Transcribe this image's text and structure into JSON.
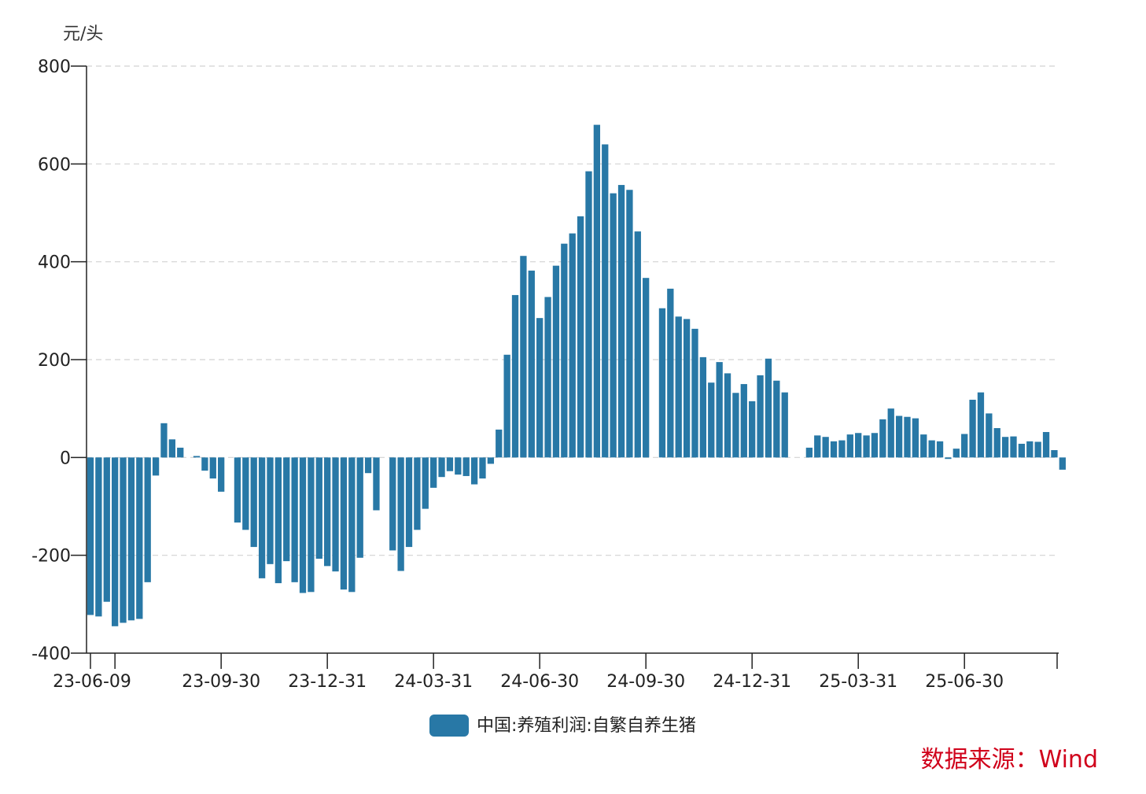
{
  "chart_data": {
    "type": "bar",
    "ylabel": "元/头",
    "ylim": [
      -400,
      800
    ],
    "yticks": [
      800,
      600,
      400,
      200,
      0,
      -200,
      -400
    ],
    "grid": true,
    "color": "#2878a6",
    "xtick_labels": [
      "23-06-09",
      "23-09-30",
      "23-12-31",
      "24-03-31",
      "24-06-30",
      "24-09-30",
      "24-12-31",
      "25-03-31",
      "25-06-30"
    ],
    "xtick_positions": [
      0,
      16,
      29,
      42,
      55,
      68,
      81,
      94,
      107
    ],
    "series": [
      {
        "name": "中国:养殖利润:自繁自养生猪",
        "values": [
          -322,
          -325,
          -295,
          -345,
          -338,
          -333,
          -330,
          -255,
          -37,
          70,
          37,
          20,
          null,
          3,
          -27,
          -43,
          -70,
          null,
          -133,
          -148,
          -183,
          -247,
          -218,
          -257,
          -212,
          -255,
          -277,
          -275,
          -207,
          -222,
          -233,
          -270,
          -275,
          -205,
          -32,
          -108,
          null,
          -190,
          -232,
          -183,
          -148,
          -105,
          -62,
          -40,
          -28,
          -35,
          -38,
          -55,
          -43,
          -13,
          57,
          210,
          332,
          412,
          382,
          285,
          328,
          392,
          437,
          458,
          493,
          585,
          680,
          640,
          540,
          557,
          547,
          462,
          367,
          null,
          305,
          345,
          288,
          283,
          263,
          205,
          153,
          195,
          172,
          132,
          150,
          115,
          168,
          202,
          157,
          133,
          null,
          null,
          20,
          45,
          42,
          33,
          35,
          47,
          50,
          45,
          50,
          78,
          100,
          85,
          83,
          80,
          47,
          35,
          33,
          -3,
          18,
          48,
          118,
          133,
          90,
          60,
          42,
          43,
          28,
          33,
          32,
          52,
          15,
          -25
        ]
      }
    ],
    "legend": {
      "position": "bottom-center"
    }
  },
  "source": "数据来源：Wind"
}
